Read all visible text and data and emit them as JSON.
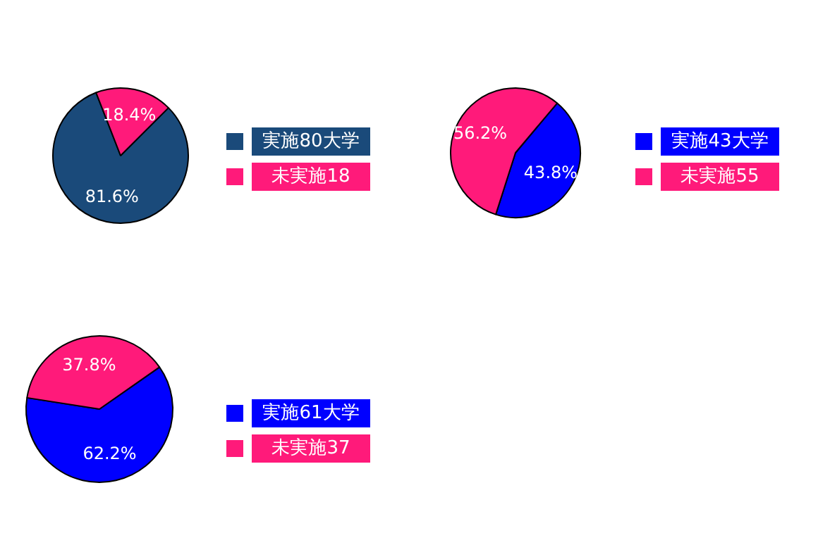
{
  "chart_data": [
    {
      "type": "pie",
      "categories": [
        "実施80大学",
        "未実施18"
      ],
      "values": [
        81.6,
        18.4
      ],
      "colors": [
        "#1a4a7a",
        "#ff1a7a"
      ],
      "value_labels": [
        "81.6%",
        "18.4%"
      ],
      "legend": "right"
    },
    {
      "type": "pie",
      "categories": [
        "実施43大学",
        "未実施55"
      ],
      "values": [
        43.8,
        56.2
      ],
      "colors": [
        "#0000ff",
        "#ff1a7a"
      ],
      "value_labels": [
        "43.8%",
        "56.2%"
      ],
      "legend": "right"
    },
    {
      "type": "pie",
      "categories": [
        "実施61大学",
        "未実施37"
      ],
      "values": [
        62.2,
        37.8
      ],
      "colors": [
        "#0000ff",
        "#ff1a7a"
      ],
      "value_labels": [
        "62.2%",
        "37.8%"
      ],
      "legend": "right"
    }
  ]
}
